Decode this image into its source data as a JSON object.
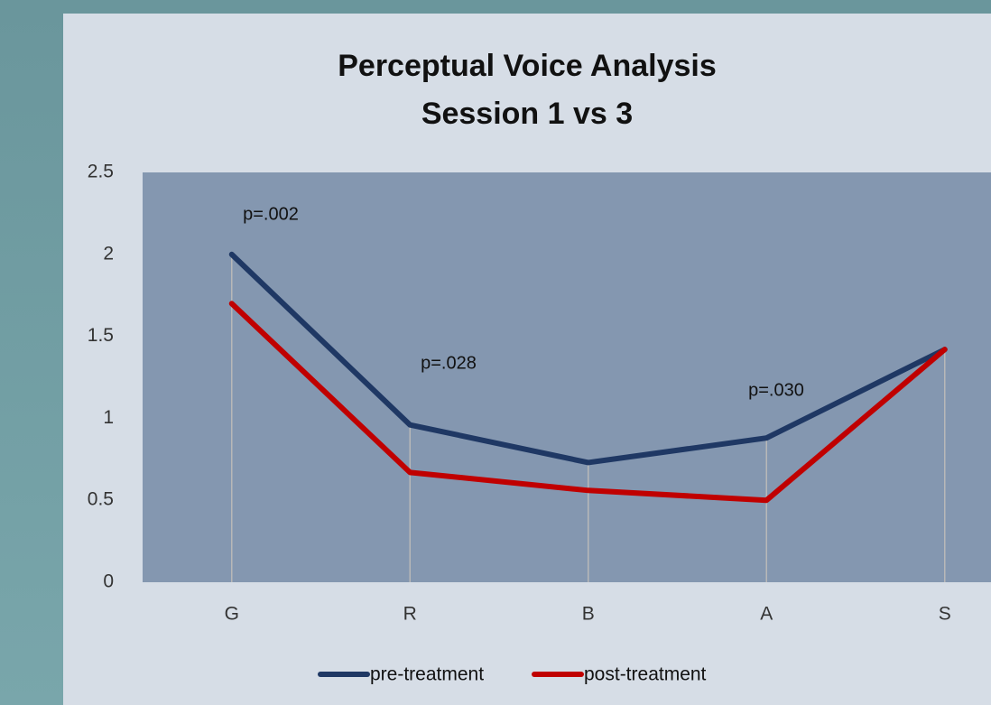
{
  "chart_data": {
    "type": "line",
    "title": "Perceptual Voice Analysis",
    "subtitle": "Session 1 vs 3",
    "categories": [
      "G",
      "R",
      "B",
      "A",
      "S"
    ],
    "series": [
      {
        "name": "pre-treatment",
        "color": "#1f3864",
        "values": [
          2.0,
          0.96,
          0.73,
          0.88,
          1.42
        ]
      },
      {
        "name": "post-treatment",
        "color": "#c00000",
        "values": [
          1.7,
          0.67,
          0.56,
          0.5,
          1.42
        ]
      }
    ],
    "annotations": [
      "p=.002",
      "p=.028",
      "p=.030"
    ],
    "ylim": [
      0,
      2.5
    ],
    "yticks": [
      0,
      0.5,
      1,
      1.5,
      2,
      2.5
    ],
    "drop_lines": true,
    "legend": "bottom"
  }
}
